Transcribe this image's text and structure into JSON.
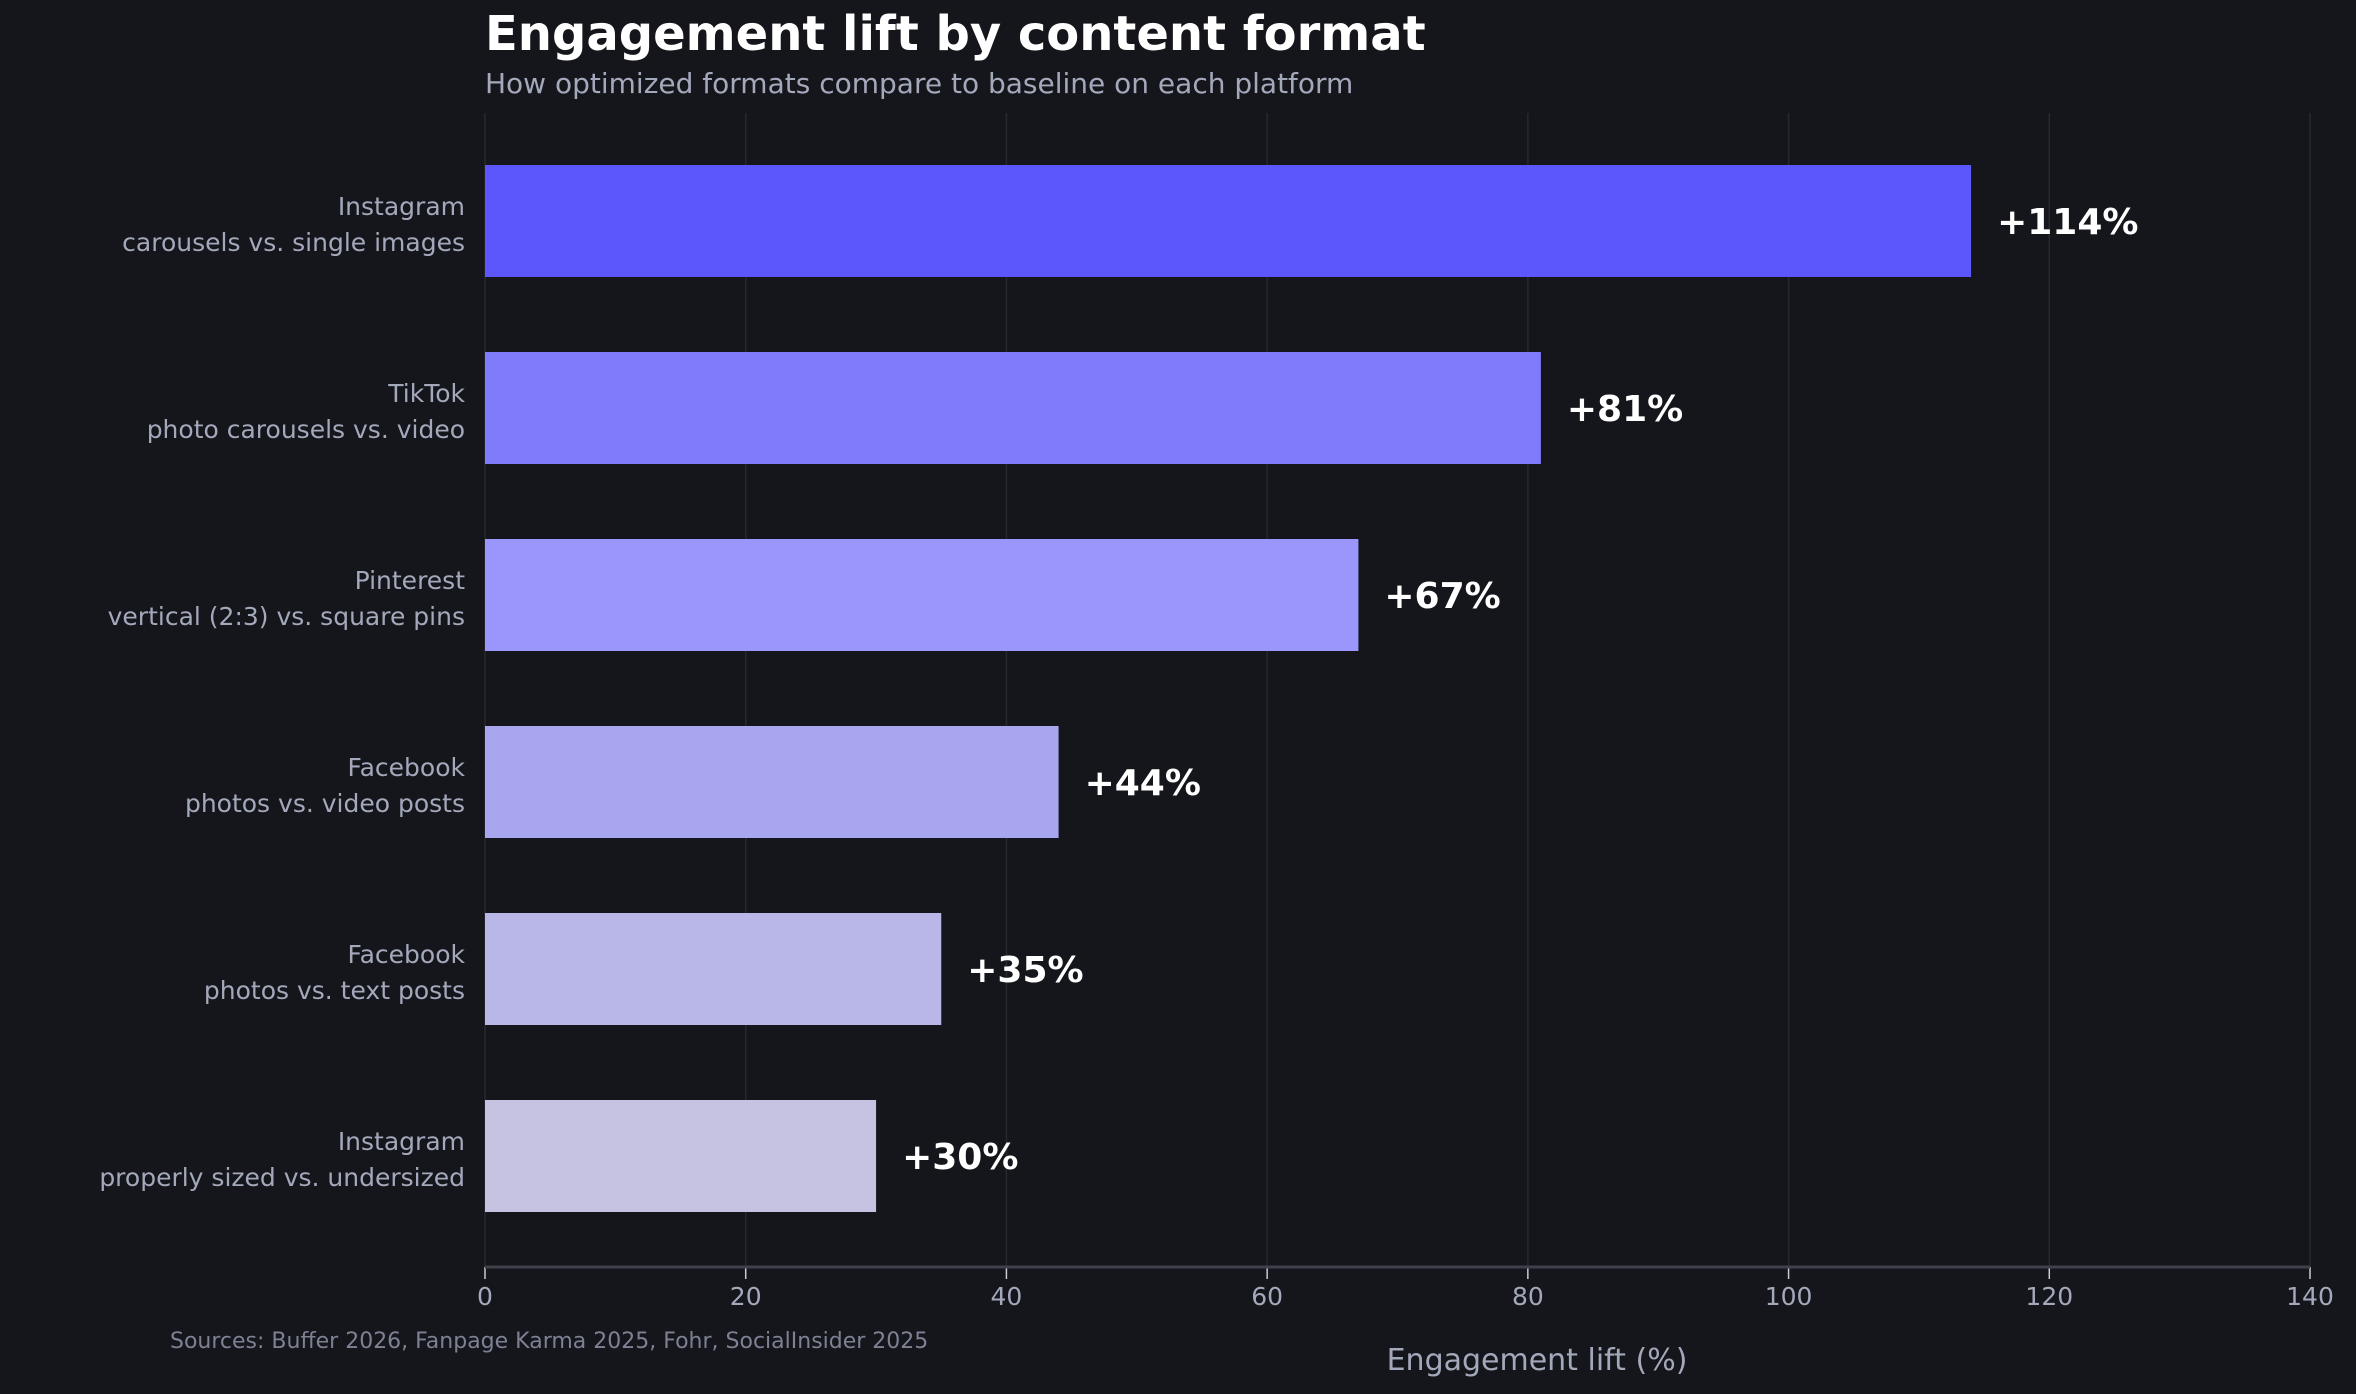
{
  "chart_data": {
    "type": "bar",
    "orientation": "horizontal",
    "title": "Engagement lift by content format",
    "subtitle": "How optimized formats compare to baseline on each platform",
    "xlabel": "Engagement lift (%)",
    "ylabel": "",
    "xlim": [
      0,
      140
    ],
    "xticks": [
      0,
      20,
      40,
      60,
      80,
      100,
      120,
      140
    ],
    "grid": true,
    "categories": [
      [
        "Instagram",
        "carousels vs. single images"
      ],
      [
        "TikTok",
        "photo carousels vs. video"
      ],
      [
        "Pinterest",
        "vertical (2:3) vs. square pins"
      ],
      [
        "Facebook",
        "photos vs. video posts"
      ],
      [
        "Facebook",
        "photos vs. text posts"
      ],
      [
        "Instagram",
        "properly sized vs. undersized"
      ]
    ],
    "values": [
      114,
      81,
      67,
      44,
      35,
      30
    ],
    "data_labels": [
      "+114%",
      "+81%",
      "+67%",
      "+44%",
      "+35%",
      "+30%"
    ],
    "colors": [
      "#5b57fc",
      "#7f7bfb",
      "#9a96fc",
      "#a9a6f0",
      "#b9b7e8",
      "#c6c3e2"
    ],
    "source": "Sources: Buffer 2026, Fanpage Karma 2025, Fohr, SocialInsider 2025"
  }
}
